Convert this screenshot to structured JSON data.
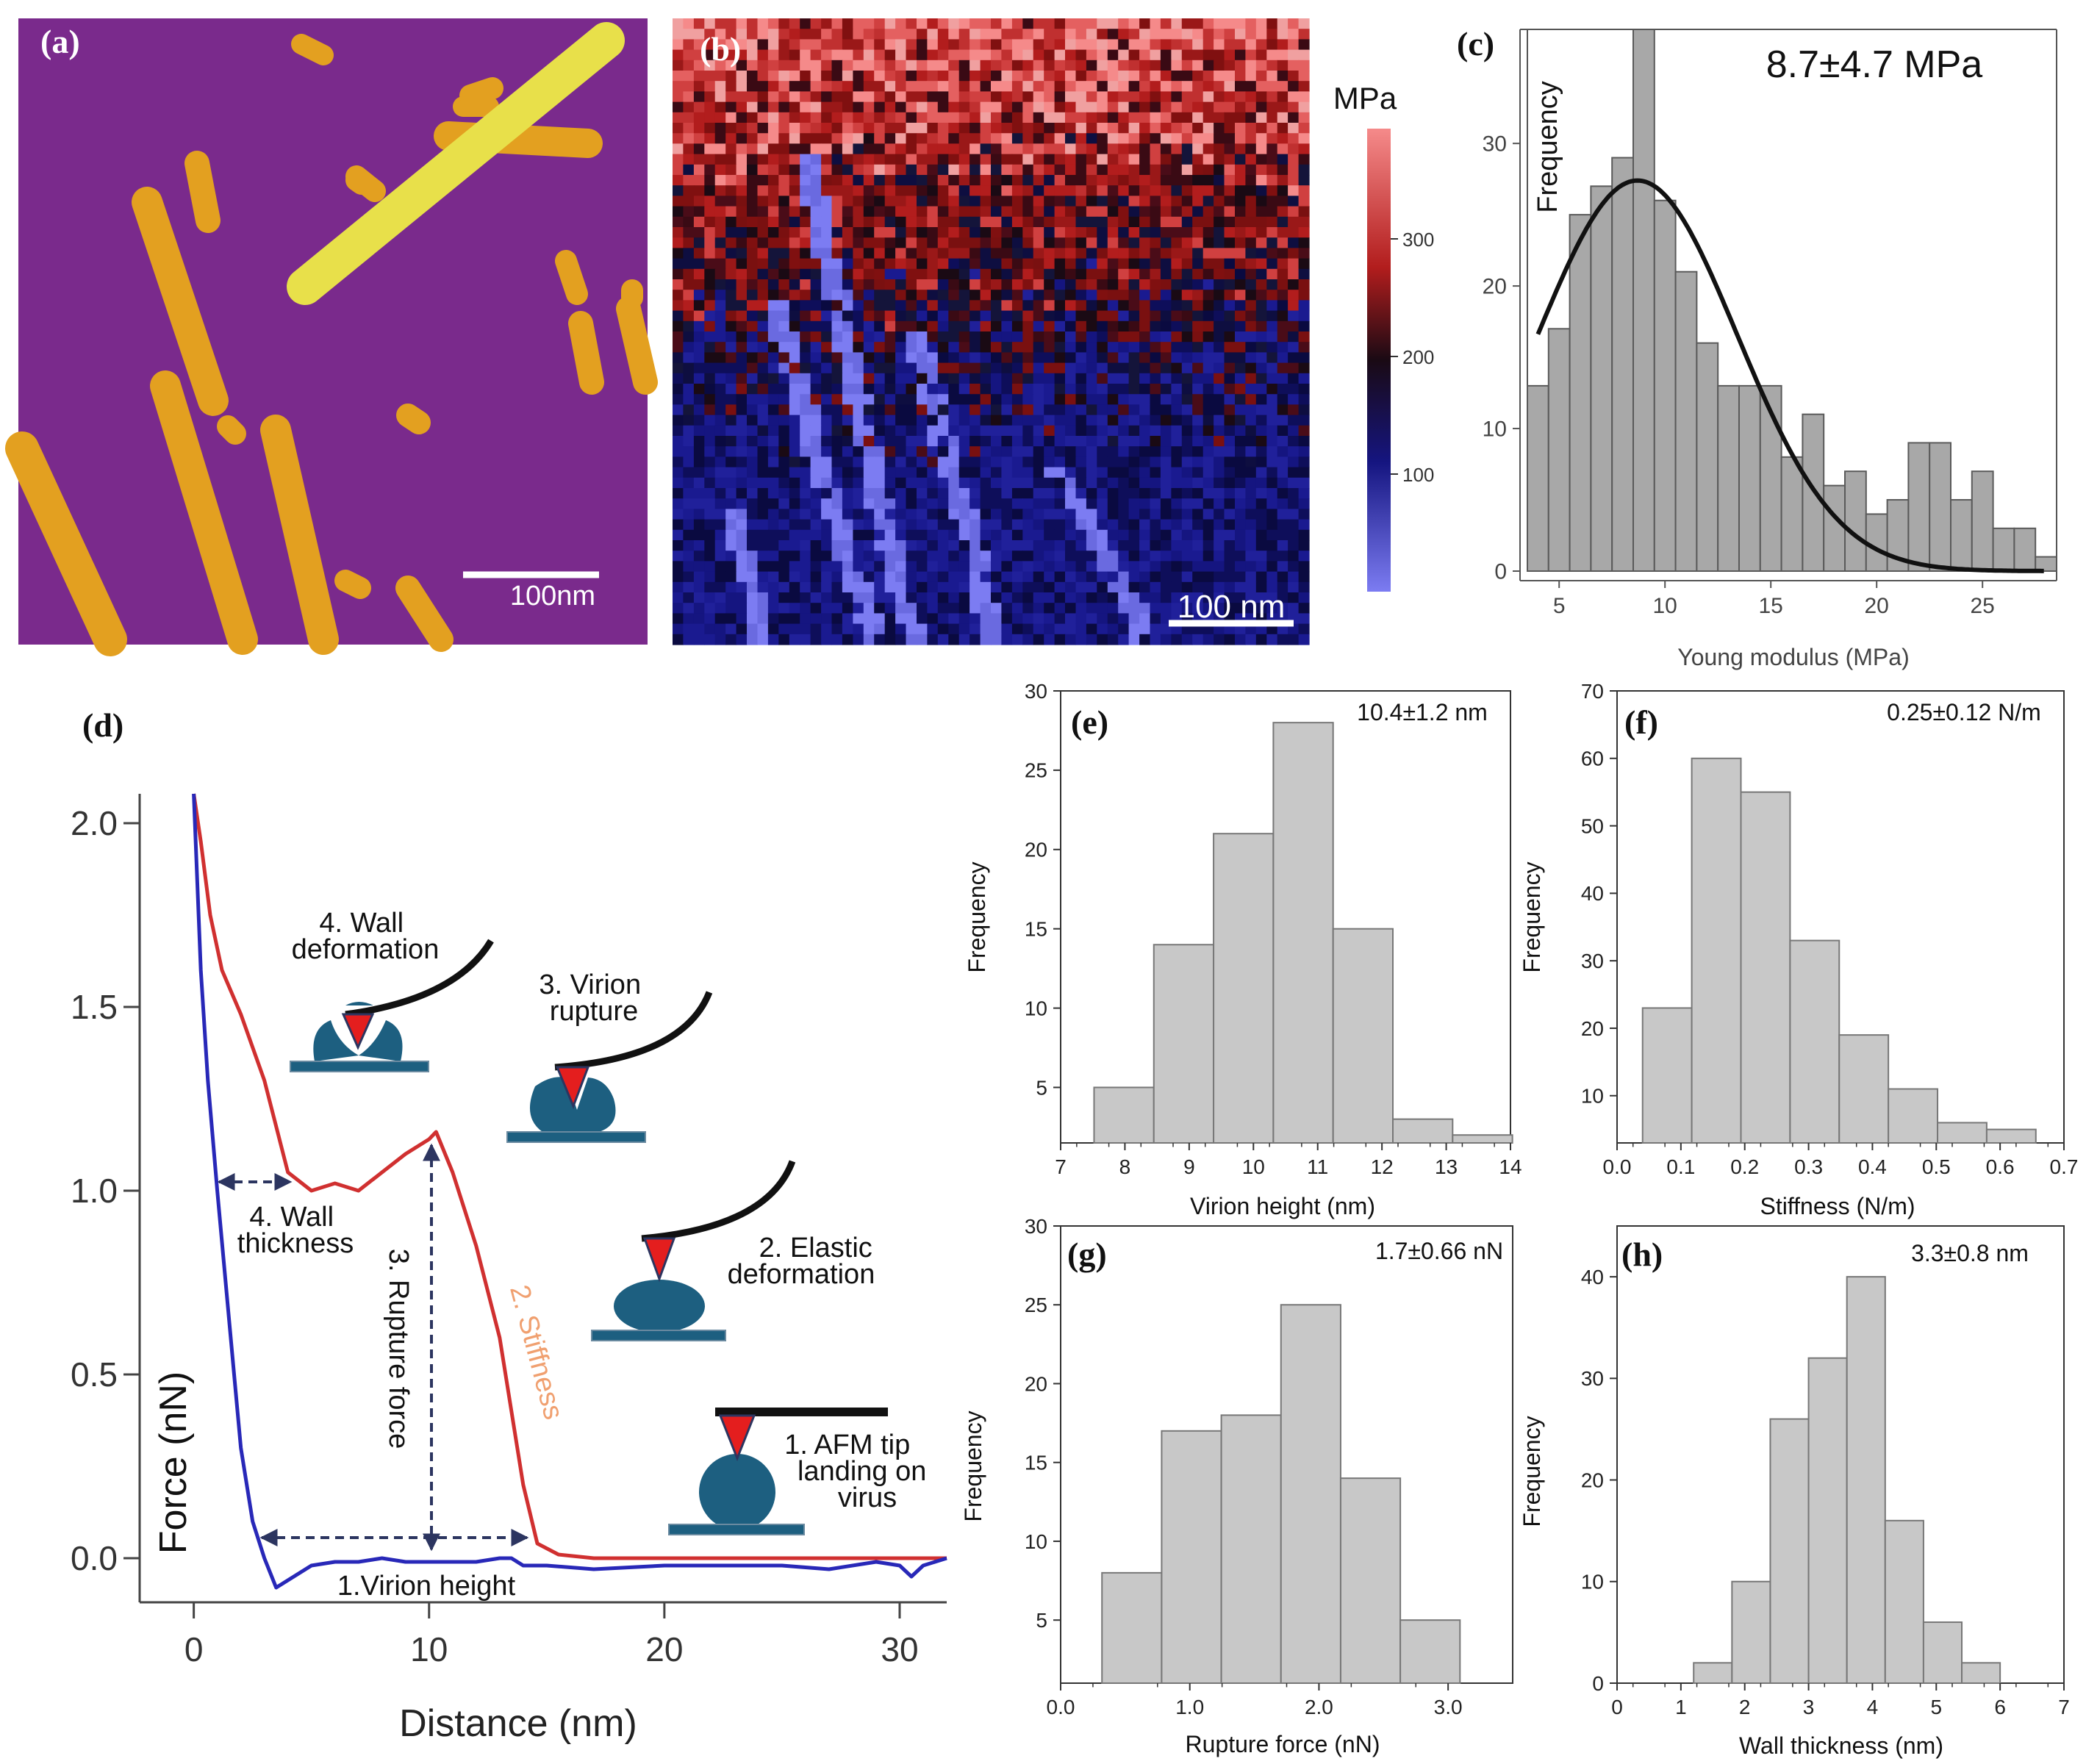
{
  "panels": {
    "a": {
      "label": "(a)",
      "scalebar": "100nm"
    },
    "b": {
      "label": "(b)",
      "scalebar": "100 nm",
      "colorbar_title": "MPa",
      "colorbar_ticks": [
        "300",
        "200",
        "100"
      ]
    },
    "c": {
      "label": "(c)",
      "annotation": "8.7±4.7 MPa"
    },
    "d": {
      "label": "(d)",
      "annotations": {
        "wall_deformation": [
          "4. Wall",
          "deformation"
        ],
        "virion_rupture": [
          "3. Virion",
          "rupture"
        ],
        "wall_thickness": [
          "4. Wall",
          "thickness"
        ],
        "rupture_force": "3. Rupture force",
        "stiffness": "2. Stiffness",
        "elastic_deformation": [
          "2. Elastic",
          "deformation"
        ],
        "tip_landing": [
          "1. AFM tip",
          "landing on",
          "virus"
        ],
        "virion_height": "1.Virion height"
      }
    },
    "e": {
      "label": "(e)",
      "annotation": "10.4±1.2 nm"
    },
    "f": {
      "label": "(f)",
      "annotation": "0.25±0.12 N/m"
    },
    "g": {
      "label": "(g)",
      "annotation": "1.7±0.66 nN"
    },
    "h": {
      "label": "(h)",
      "annotation": "3.3±0.8 nm"
    }
  },
  "colors": {
    "afm_background": "#7a2a8c",
    "afm_rods": "#e3a020",
    "afm_highlight": "#e8e04a",
    "hist_dark": "#a8a8a8",
    "hist_light": "#c8c8c8",
    "curve_red": "#d03030",
    "curve_blue": "#2828b8",
    "stiffness_label": "#f0a070",
    "arrow": "#2c3560",
    "virus": "#1d5f80",
    "tip": "#e41e1e"
  },
  "chart_data": [
    {
      "panel": "c",
      "type": "bar",
      "xlabel": "Young modulus (MPa)",
      "ylabel": "Frequency",
      "xlim": [
        3.5,
        28.5
      ],
      "ylim": [
        0,
        38
      ],
      "xticks": [
        5,
        10,
        15,
        20,
        25
      ],
      "yticks": [
        0,
        10,
        20,
        30
      ],
      "bin_width": 1,
      "bin_starts": [
        3.5,
        4.5,
        5.5,
        6.5,
        7.5,
        8.5,
        9.5,
        10.5,
        11.5,
        12.5,
        13.5,
        14.5,
        15.5,
        16.5,
        17.5,
        18.5,
        19.5,
        20.5,
        21.5,
        22.5,
        23.5,
        24.5,
        25.5,
        26.5,
        27.5
      ],
      "values": [
        13,
        17,
        25,
        27,
        29,
        38,
        26,
        21,
        16,
        13,
        13,
        13,
        8,
        11,
        6,
        7,
        4,
        5,
        9,
        9,
        5,
        7,
        3,
        3,
        1
      ],
      "fit": {
        "type": "gaussian",
        "mean": 8.7,
        "sd": 4.7,
        "peak": 27.4
      }
    },
    {
      "panel": "d",
      "type": "line",
      "xlabel": "Distance (nm)",
      "ylabel": "Force (nN)",
      "xlim": [
        -2.3,
        32
      ],
      "ylim": [
        -0.12,
        2.08
      ],
      "xticks": [
        0,
        10,
        20,
        30
      ],
      "yticks": [
        0.0,
        0.5,
        1.0,
        1.5,
        2.0
      ],
      "series": [
        {
          "color": "red",
          "x": [
            0,
            0.3,
            0.7,
            1.2,
            2,
            3,
            4,
            5,
            6,
            7,
            8,
            9,
            10,
            10.3,
            11,
            12,
            13,
            14,
            14.6,
            15.5,
            17,
            20,
            25,
            30,
            32
          ],
          "y": [
            2.1,
            1.95,
            1.75,
            1.6,
            1.48,
            1.3,
            1.05,
            1.0,
            1.02,
            1.0,
            1.05,
            1.1,
            1.14,
            1.16,
            1.05,
            0.85,
            0.6,
            0.2,
            0.04,
            0.01,
            0.0,
            0.0,
            0.0,
            0.0,
            0.0
          ]
        },
        {
          "color": "blue",
          "x": [
            0,
            0.3,
            0.6,
            1,
            1.5,
            2,
            2.5,
            3,
            3.5,
            4,
            5,
            6,
            7,
            8,
            9,
            10,
            11,
            12,
            13,
            13.5,
            14,
            15,
            17,
            20,
            23,
            25,
            27,
            29,
            30,
            30.5,
            31,
            32
          ],
          "y": [
            2.1,
            1.6,
            1.3,
            1.0,
            0.65,
            0.3,
            0.1,
            0.0,
            -0.08,
            -0.06,
            -0.02,
            -0.01,
            -0.01,
            0.0,
            -0.01,
            -0.01,
            -0.01,
            -0.01,
            0.0,
            0.0,
            -0.02,
            -0.02,
            -0.03,
            -0.02,
            -0.02,
            -0.02,
            -0.03,
            -0.01,
            -0.02,
            -0.05,
            -0.02,
            0.0
          ]
        }
      ]
    },
    {
      "panel": "e",
      "type": "bar",
      "xlabel": "Virion height (nm)",
      "ylabel": "Frequency",
      "xlim": [
        7,
        14
      ],
      "ylim": [
        1.5,
        30
      ],
      "xticks": [
        7,
        8,
        9,
        10,
        11,
        12,
        13,
        14
      ],
      "yticks": [
        5,
        10,
        15,
        20,
        25,
        30
      ],
      "bin_width": 0.93,
      "bin_starts": [
        7.52,
        8.45,
        9.38,
        10.31,
        11.24,
        12.17,
        13.1
      ],
      "values": [
        5,
        14,
        21,
        28,
        15,
        3,
        2
      ]
    },
    {
      "panel": "f",
      "type": "bar",
      "xlabel": "Stiffness (N/m)",
      "ylabel": "Frequency",
      "xlim": [
        0,
        0.7
      ],
      "ylim": [
        3,
        70
      ],
      "xticks": [
        0.0,
        0.1,
        0.2,
        0.3,
        0.4,
        0.5,
        0.6,
        0.7
      ],
      "yticks": [
        10,
        20,
        30,
        40,
        50,
        60,
        70
      ],
      "bin_width": 0.077,
      "bin_starts": [
        0.04,
        0.117,
        0.194,
        0.271,
        0.348,
        0.425,
        0.502,
        0.579
      ],
      "values": [
        23,
        60,
        55,
        33,
        19,
        11,
        6,
        5
      ]
    },
    {
      "panel": "g",
      "type": "bar",
      "xlabel": "Rupture force (nN)",
      "ylabel": "Frequency",
      "xlim": [
        0,
        3.5
      ],
      "ylim": [
        1,
        30
      ],
      "xticks": [
        0.0,
        1.0,
        2.0,
        3.0
      ],
      "yticks": [
        5,
        10,
        15,
        20,
        25,
        30
      ],
      "bin_width": 0.462,
      "bin_starts": [
        0.32,
        0.782,
        1.244,
        1.706,
        2.168,
        2.63,
        3.092
      ],
      "values": [
        8,
        17,
        18,
        25,
        14,
        5,
        1
      ]
    },
    {
      "panel": "h",
      "type": "bar",
      "xlabel": "Wall thickness (nm)",
      "ylabel": "Frequency",
      "xlim": [
        0,
        7
      ],
      "ylim": [
        0,
        45
      ],
      "xticks": [
        0,
        1,
        2,
        3,
        4,
        5,
        6,
        7
      ],
      "yticks": [
        0,
        10,
        20,
        30,
        40
      ],
      "bin_width": 0.6,
      "bin_starts": [
        1.2,
        1.8,
        2.4,
        3.0,
        3.6,
        4.2,
        4.8,
        5.4
      ],
      "values": [
        2,
        10,
        26,
        32,
        40,
        16,
        6,
        2
      ]
    }
  ]
}
